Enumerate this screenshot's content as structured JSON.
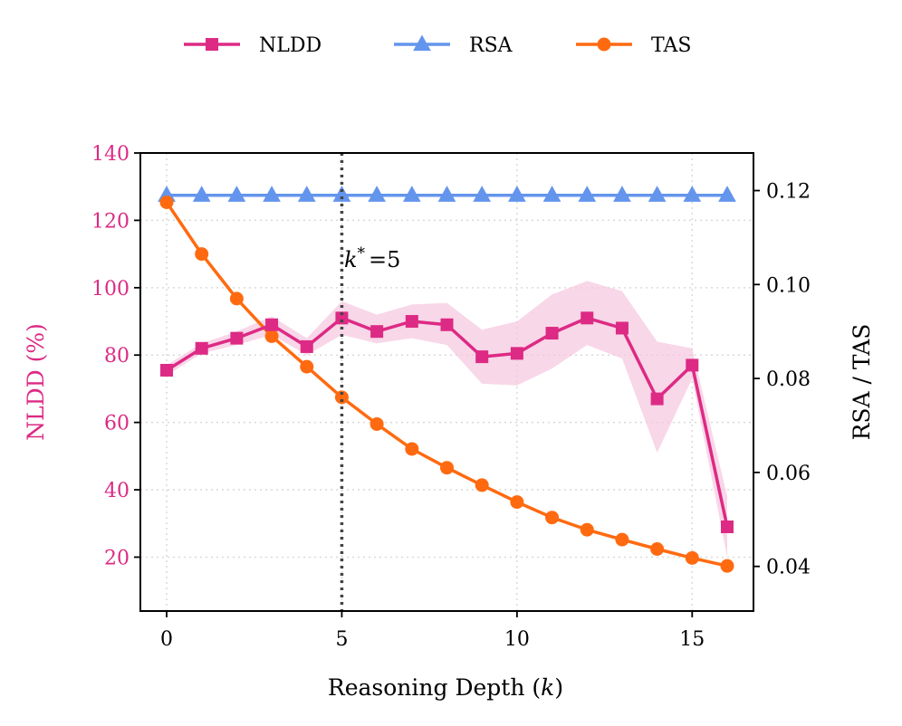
{
  "chart_data": {
    "type": "line",
    "title": "",
    "x": [
      0,
      1,
      2,
      3,
      4,
      5,
      6,
      7,
      8,
      9,
      10,
      11,
      12,
      13,
      14,
      15,
      16
    ],
    "xlabel_main": "Reasoning Depth (",
    "xlabel_var": "k",
    "xlabel_end": ")",
    "xticks": [
      0,
      5,
      10,
      15
    ],
    "xlim": [
      -0.75,
      16.75
    ],
    "ylabel_left": "NLDD (%)",
    "ylabel_right": "RSA / TAS",
    "ylim_left": [
      4,
      140
    ],
    "ylim_right": [
      0.0305,
      0.128
    ],
    "yticks_left": [
      20,
      40,
      60,
      80,
      100,
      120,
      140
    ],
    "yticks_right": [
      0.04,
      0.06,
      0.08,
      0.1,
      0.12
    ],
    "yticks_right_labels": [
      "0.04",
      "0.06",
      "0.08",
      "0.10",
      "0.12"
    ],
    "grid": true,
    "legend_position": "top-center",
    "annotation": {
      "x": 5,
      "k_label": "k",
      "star": "*",
      "eq": "=5",
      "style": "dotted vertical line"
    },
    "series": [
      {
        "name": "NLDD",
        "axis": "left",
        "color": "#dd2a84",
        "band_color": "#f5c6de",
        "marker": "square",
        "values": [
          75.5,
          82,
          85,
          89,
          82.5,
          91,
          87,
          90,
          89,
          79.5,
          80.5,
          86.5,
          91,
          88,
          67,
          77,
          29
        ],
        "lower": [
          74,
          80.5,
          83,
          86,
          80,
          86,
          83.5,
          85,
          83,
          71.5,
          71,
          76,
          83,
          79,
          51,
          73,
          20
        ],
        "upper": [
          77,
          83.5,
          87,
          91.5,
          85,
          96,
          92,
          95,
          95.5,
          87.5,
          90,
          98,
          102,
          99,
          84,
          82,
          38
        ]
      },
      {
        "name": "RSA",
        "axis": "right",
        "color": "#6495ed",
        "marker": "triangle",
        "values": [
          0.119,
          0.119,
          0.119,
          0.119,
          0.119,
          0.119,
          0.119,
          0.119,
          0.119,
          0.119,
          0.119,
          0.119,
          0.119,
          0.119,
          0.119,
          0.119,
          0.119
        ]
      },
      {
        "name": "TAS",
        "axis": "right",
        "color": "#ff6a10",
        "marker": "circle",
        "values": [
          0.1175,
          0.1065,
          0.097,
          0.089,
          0.0825,
          0.076,
          0.0703,
          0.065,
          0.061,
          0.0573,
          0.0537,
          0.0504,
          0.0478,
          0.0457,
          0.0437,
          0.0418,
          0.0401
        ]
      }
    ]
  }
}
